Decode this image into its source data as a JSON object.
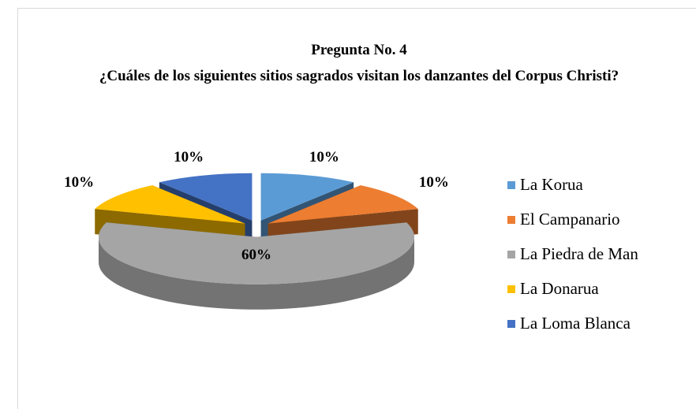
{
  "chart_data": {
    "type": "pie",
    "title": "Pregunta No. 4",
    "subtitle": "¿Cuáles de los siguientes sitios sagrados visitan los danzantes del Corpus Christi?",
    "categories": [
      "La Korua",
      "El Campanario",
      "La Piedra de Man",
      "La Donarua",
      "La Loma Blanca"
    ],
    "values": [
      10,
      10,
      60,
      10,
      10
    ],
    "value_labels": [
      "10%",
      "10%",
      "60%",
      "10%",
      "10%"
    ],
    "colors": [
      "#5b9bd5",
      "#ed7d31",
      "#a5a5a5",
      "#ffc000",
      "#4472c4"
    ],
    "legend": "right"
  }
}
